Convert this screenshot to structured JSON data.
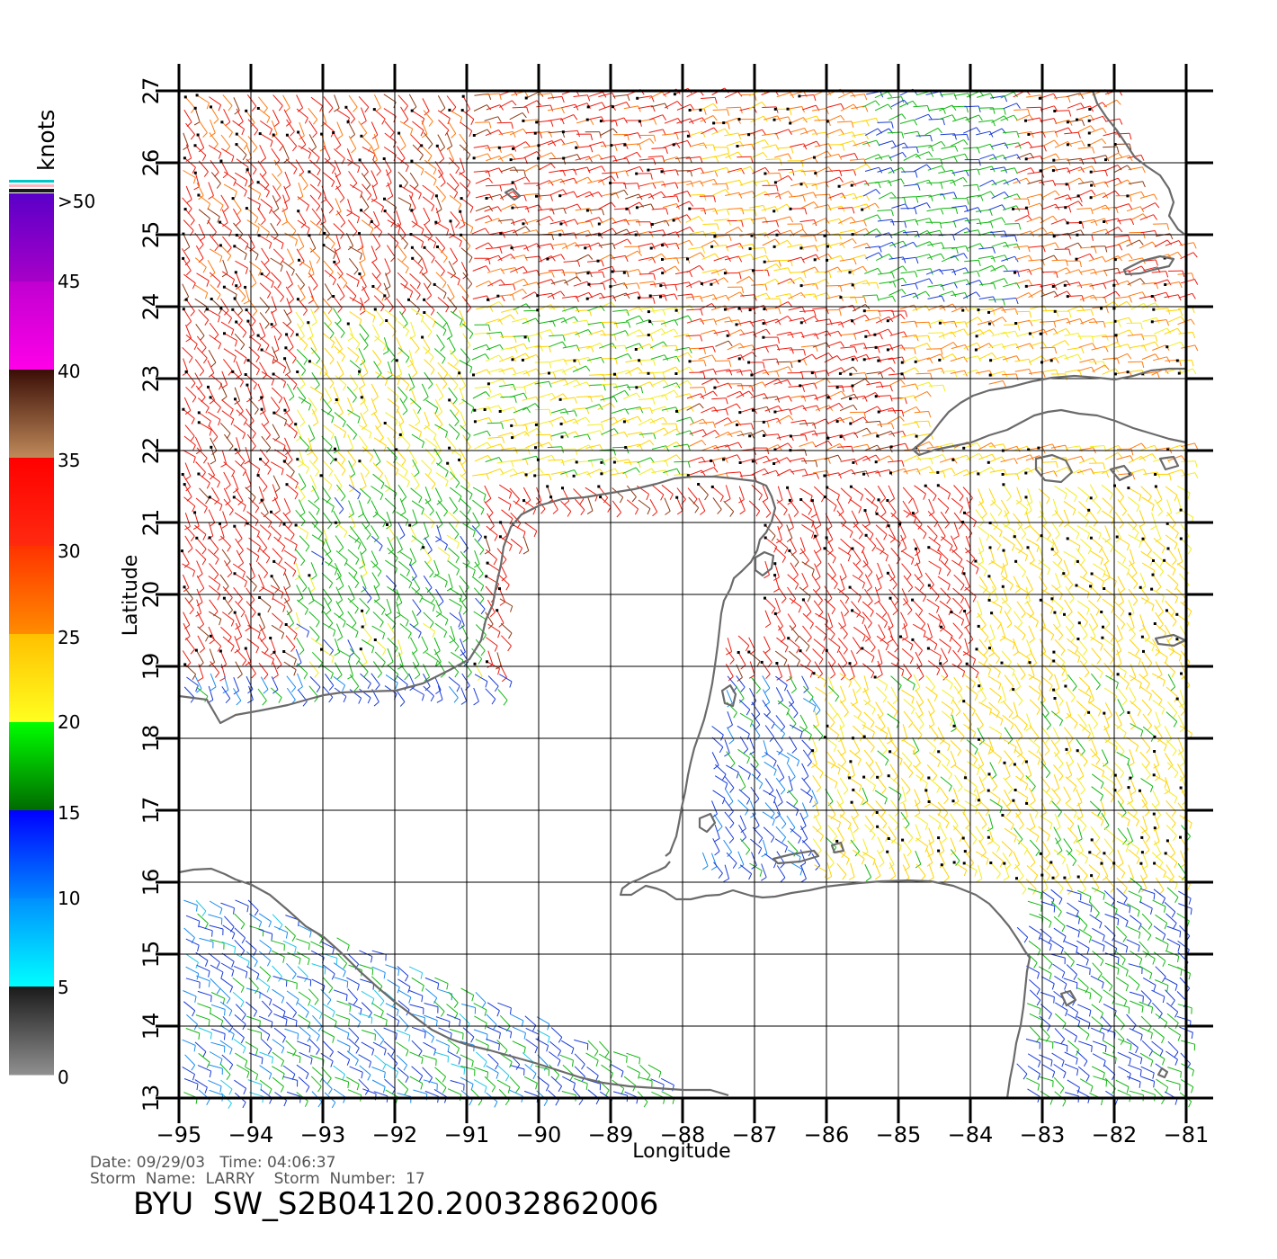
{
  "colorbar": {
    "units": "knots",
    "labels": [
      ">50",
      "45",
      "40",
      "35",
      "30",
      "25",
      "20",
      "15",
      "10",
      "5",
      "0"
    ],
    "bands": [
      {
        "from": 50,
        "to": 45,
        "top": "#5a00c8",
        "bottom": "#a800c8"
      },
      {
        "from": 45,
        "to": 40,
        "top": "#c000d0",
        "bottom": "#ff00e8"
      },
      {
        "from": 40,
        "to": 35,
        "top": "#3a0e06",
        "bottom": "#c08a5a"
      },
      {
        "from": 35,
        "to": 30,
        "top": "#ff0000",
        "bottom": "#ff2a10"
      },
      {
        "from": 30,
        "to": 25,
        "top": "#ff3300",
        "bottom": "#ff8c00"
      },
      {
        "from": 25,
        "to": 20,
        "top": "#ffc000",
        "bottom": "#ffff20"
      },
      {
        "from": 20,
        "to": 15,
        "top": "#00ff00",
        "bottom": "#006a00"
      },
      {
        "from": 15,
        "to": 10,
        "top": "#0000ff",
        "bottom": "#0088ff"
      },
      {
        "from": 10,
        "to": 5,
        "top": "#0090ff",
        "bottom": "#00ffff"
      },
      {
        "from": 5,
        "to": 0,
        "top": "#1a1a1a",
        "bottom": "#909090"
      }
    ],
    "swatches": [
      "#00c8c8",
      "#ffb6c1"
    ]
  },
  "map": {
    "lon_ticks": [
      "−95",
      "−94",
      "−93",
      "−92",
      "−91",
      "−90",
      "−89",
      "−88",
      "−87",
      "−86",
      "−85",
      "−84",
      "−83",
      "−82",
      "−81"
    ],
    "lat_ticks": [
      "13",
      "14",
      "15",
      "16",
      "17",
      "18",
      "19",
      "20",
      "21",
      "22",
      "23",
      "24",
      "25",
      "26",
      "27"
    ],
    "lon_range": [
      -95,
      -81
    ],
    "lat_range": [
      13,
      27
    ],
    "xlabel": "Longitude",
    "ylabel": "Latitude",
    "coast_color": "#6b6b6b"
  },
  "footer": {
    "date_line": "Date: 09/29/03   Time: 04:06:37",
    "storm_line": "Storm  Name:  LARRY    Storm  Number:  17",
    "title": "BYU  SW_S2B04120.20032862006"
  }
}
